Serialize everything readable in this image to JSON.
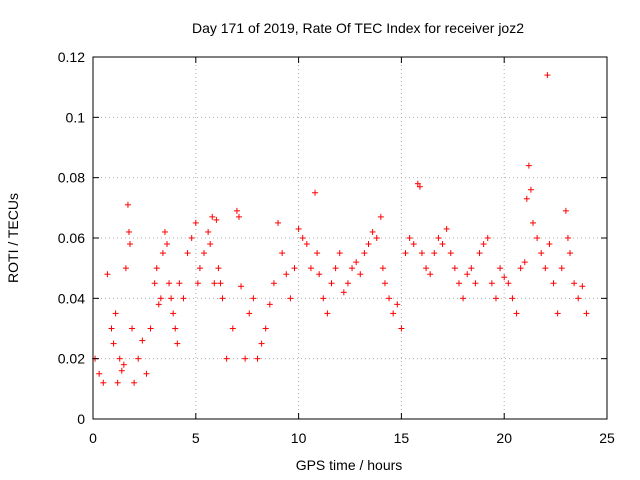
{
  "chart_data": {
    "type": "scatter",
    "title": "Day 171 of 2019, Rate Of TEC Index for receiver joz2",
    "xlabel": "GPS time / hours",
    "ylabel": "ROTI / TECUs",
    "xlim": [
      0,
      25
    ],
    "ylim": [
      0,
      0.12
    ],
    "xticks": [
      0,
      5,
      10,
      15,
      20,
      25
    ],
    "yticks": [
      0,
      0.02,
      0.04,
      0.06,
      0.08,
      0.1,
      0.12
    ],
    "xtick_labels": [
      "0",
      "5",
      "10",
      "15",
      "20",
      "25"
    ],
    "ytick_labels": [
      "0",
      "0.02",
      "0.04",
      "0.06",
      "0.08",
      "0.1",
      "0.12"
    ],
    "grid": true,
    "marker": "+",
    "color": "#ff0000",
    "series": [
      {
        "name": "ROTI",
        "x": [
          0.1,
          0.3,
          0.5,
          0.7,
          0.9,
          1.0,
          1.1,
          1.2,
          1.3,
          1.4,
          1.5,
          1.6,
          1.7,
          1.75,
          1.8,
          1.9,
          2.0,
          2.2,
          2.4,
          2.6,
          2.8,
          3.0,
          3.1,
          3.2,
          3.3,
          3.4,
          3.5,
          3.6,
          3.7,
          3.8,
          3.9,
          4.0,
          4.1,
          4.2,
          4.4,
          4.6,
          4.8,
          5.0,
          5.1,
          5.2,
          5.4,
          5.6,
          5.7,
          5.8,
          5.9,
          6.0,
          6.1,
          6.2,
          6.3,
          6.5,
          6.8,
          7.0,
          7.1,
          7.2,
          7.4,
          7.6,
          7.8,
          8.0,
          8.2,
          8.4,
          8.6,
          8.8,
          9.0,
          9.2,
          9.4,
          9.6,
          9.8,
          10.0,
          10.2,
          10.4,
          10.6,
          10.8,
          10.9,
          11.0,
          11.2,
          11.4,
          11.6,
          11.8,
          12.0,
          12.2,
          12.4,
          12.6,
          12.8,
          13.0,
          13.2,
          13.4,
          13.6,
          13.8,
          14.0,
          14.1,
          14.2,
          14.4,
          14.6,
          14.8,
          15.0,
          15.2,
          15.4,
          15.6,
          15.8,
          15.9,
          16.0,
          16.2,
          16.4,
          16.6,
          16.8,
          17.0,
          17.2,
          17.4,
          17.6,
          17.8,
          18.0,
          18.2,
          18.4,
          18.6,
          18.8,
          19.0,
          19.2,
          19.4,
          19.6,
          19.8,
          20.0,
          20.2,
          20.4,
          20.6,
          20.8,
          21.0,
          21.1,
          21.2,
          21.3,
          21.4,
          21.6,
          21.8,
          22.0,
          22.1,
          22.2,
          22.4,
          22.6,
          22.8,
          23.0,
          23.1,
          23.2,
          23.4,
          23.6,
          23.8,
          24.0
        ],
        "y": [
          0.02,
          0.015,
          0.012,
          0.048,
          0.03,
          0.025,
          0.035,
          0.012,
          0.02,
          0.016,
          0.018,
          0.05,
          0.071,
          0.062,
          0.058,
          0.03,
          0.012,
          0.02,
          0.026,
          0.015,
          0.03,
          0.045,
          0.05,
          0.038,
          0.04,
          0.055,
          0.062,
          0.058,
          0.045,
          0.04,
          0.035,
          0.03,
          0.025,
          0.045,
          0.04,
          0.055,
          0.06,
          0.065,
          0.045,
          0.05,
          0.055,
          0.062,
          0.058,
          0.067,
          0.045,
          0.066,
          0.05,
          0.045,
          0.04,
          0.02,
          0.03,
          0.069,
          0.067,
          0.044,
          0.02,
          0.035,
          0.04,
          0.02,
          0.025,
          0.03,
          0.038,
          0.045,
          0.065,
          0.055,
          0.048,
          0.04,
          0.05,
          0.063,
          0.06,
          0.058,
          0.05,
          0.075,
          0.055,
          0.048,
          0.04,
          0.035,
          0.045,
          0.05,
          0.055,
          0.042,
          0.045,
          0.05,
          0.052,
          0.048,
          0.055,
          0.058,
          0.062,
          0.06,
          0.067,
          0.05,
          0.045,
          0.04,
          0.035,
          0.038,
          0.03,
          0.055,
          0.06,
          0.058,
          0.078,
          0.077,
          0.055,
          0.05,
          0.048,
          0.055,
          0.06,
          0.058,
          0.063,
          0.055,
          0.05,
          0.045,
          0.04,
          0.048,
          0.05,
          0.045,
          0.055,
          0.058,
          0.06,
          0.045,
          0.04,
          0.05,
          0.047,
          0.045,
          0.04,
          0.035,
          0.05,
          0.052,
          0.073,
          0.084,
          0.076,
          0.065,
          0.06,
          0.055,
          0.05,
          0.114,
          0.058,
          0.045,
          0.035,
          0.05,
          0.069,
          0.06,
          0.055,
          0.045,
          0.04,
          0.044,
          0.035
        ]
      }
    ]
  }
}
